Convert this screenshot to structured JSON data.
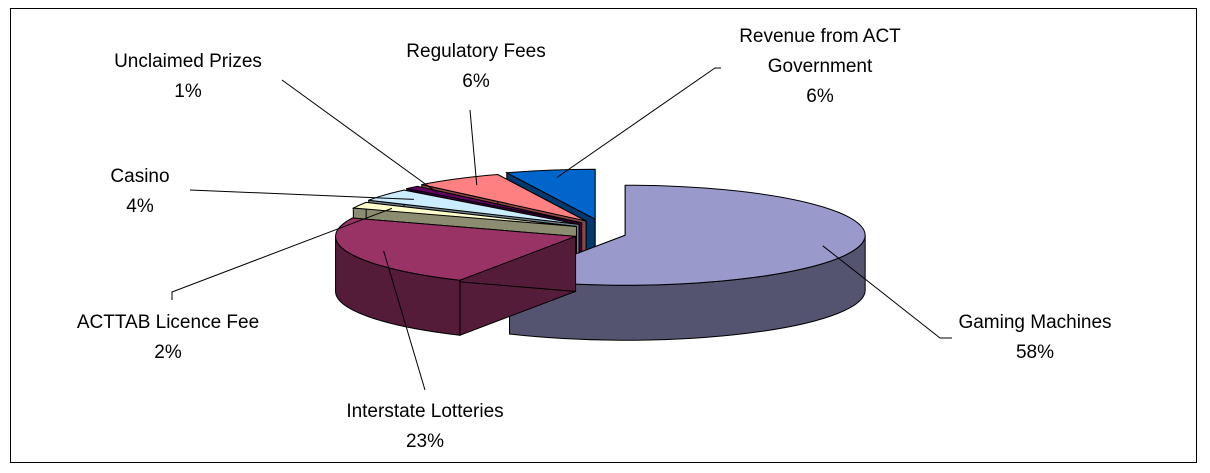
{
  "chart_data": {
    "type": "pie",
    "categories": [
      "Gaming Machines",
      "Interstate Lotteries",
      "ACTTAB Licence Fee",
      "Casino",
      "Unclaimed Prizes",
      "Regulatory Fees",
      "Revenue from ACT Government"
    ],
    "values": [
      58,
      23,
      2,
      4,
      1,
      6,
      6
    ],
    "value_labels": [
      "58%",
      "23%",
      "2%",
      "4%",
      "1%",
      "6%",
      "6%"
    ],
    "colors": [
      "#9999cc",
      "#993366",
      "#ffffcc",
      "#ccecff",
      "#660066",
      "#ff8080",
      "#0066cc"
    ]
  }
}
